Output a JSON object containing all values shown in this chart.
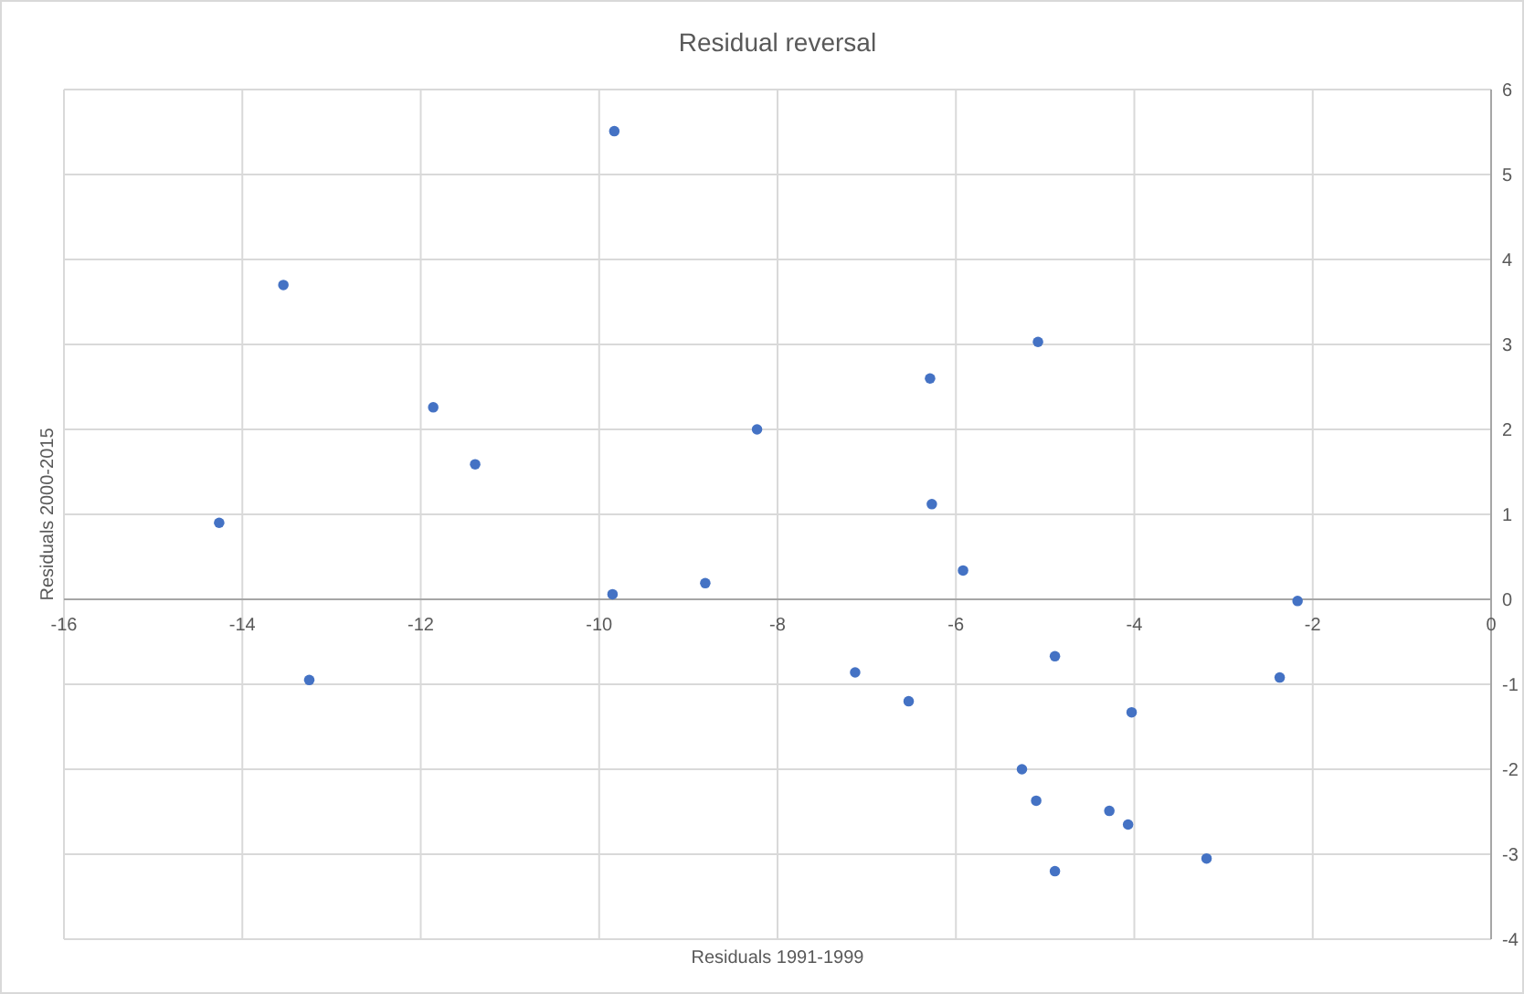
{
  "chart_data": {
    "type": "scatter",
    "title": "Residual reversal",
    "xlabel": "Residuals 1991-1999",
    "ylabel": "Residuals 2000-2015",
    "xlim": [
      -16,
      0
    ],
    "xticks": [
      -16,
      -14,
      -12,
      -10,
      -8,
      -6,
      -4,
      -2,
      0
    ],
    "ylim": [
      -4,
      6
    ],
    "yticks": [
      -4,
      -3,
      -2,
      -1,
      0,
      1,
      2,
      3,
      4,
      5,
      6
    ],
    "grid": true,
    "marker": "circle",
    "series": [
      {
        "color": "#4472c4",
        "x": [
          -9.83,
          -13.54,
          -5.08,
          -6.29,
          -11.86,
          -8.23,
          -11.39,
          -6.27,
          -14.26,
          -5.92,
          -8.81,
          -9.85,
          -2.17,
          -4.89,
          -2.37,
          -7.13,
          -13.25,
          -6.53,
          -4.03,
          -5.26,
          -5.1,
          -4.28,
          -4.07,
          -3.19,
          -4.89
        ],
        "values": [
          5.51,
          3.7,
          3.03,
          2.6,
          2.26,
          2.0,
          1.59,
          1.12,
          0.9,
          0.34,
          0.19,
          0.06,
          -0.02,
          -0.67,
          -0.92,
          -0.86,
          -0.95,
          -1.2,
          -1.33,
          -2.0,
          -2.37,
          -2.49,
          -2.65,
          -3.05,
          -3.2
        ]
      }
    ]
  }
}
